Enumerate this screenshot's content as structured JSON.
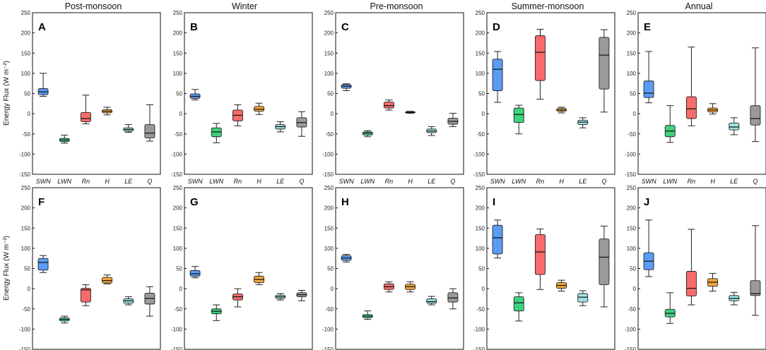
{
  "figure": {
    "type": "box",
    "ylabel": "Energy Flux (W m⁻²)",
    "ylim": [
      -150,
      250
    ],
    "yticks": [
      "250",
      "200",
      "150",
      "100",
      "50",
      "0",
      "-50",
      "-100",
      "-150"
    ],
    "categories": [
      "SWN",
      "LWN",
      "Rn",
      "H",
      "LE",
      "Q"
    ],
    "season_titles": [
      "Post-monsoon",
      "Winter",
      "Pre-monsoon",
      "Summer-monsoon",
      "Annual"
    ],
    "colors": {
      "SWN": "#5b9bf5",
      "LWN": "#3ed27f",
      "Rn": "#f86b6b",
      "H": "#f3a73a",
      "LE": "#9fe0e2",
      "Q": "#9a9a9a"
    }
  },
  "chart_data": [
    {
      "type": "box",
      "letter": "A",
      "season": "Post-monsoon",
      "row": 0,
      "col": 0,
      "boxes": [
        {
          "category": "SWN",
          "min": 43,
          "q1": 47,
          "median": 54,
          "q3": 62,
          "max": 100
        },
        {
          "category": "LWN",
          "min": -73,
          "q1": -69,
          "median": -65,
          "q3": -61,
          "max": -53
        },
        {
          "category": "Rn",
          "min": -25,
          "q1": -20,
          "median": -12,
          "q3": 3,
          "max": 46
        },
        {
          "category": "H",
          "min": -3,
          "q1": 2,
          "median": 6,
          "q3": 10,
          "max": 16
        },
        {
          "category": "LE",
          "min": -46,
          "q1": -43,
          "median": -39,
          "q3": -35,
          "max": -27
        },
        {
          "category": "Q",
          "min": -68,
          "q1": -60,
          "median": -48,
          "q3": -27,
          "max": 22
        }
      ]
    },
    {
      "type": "box",
      "letter": "B",
      "season": "Winter",
      "row": 0,
      "col": 1,
      "boxes": [
        {
          "category": "SWN",
          "min": 34,
          "q1": 38,
          "median": 43,
          "q3": 49,
          "max": 60
        },
        {
          "category": "LWN",
          "min": -72,
          "q1": -57,
          "median": -45,
          "q3": -35,
          "max": -24
        },
        {
          "category": "Rn",
          "min": -30,
          "q1": -18,
          "median": -4,
          "q3": 9,
          "max": 22
        },
        {
          "category": "H",
          "min": -2,
          "q1": 6,
          "median": 11,
          "q3": 18,
          "max": 26
        },
        {
          "category": "LE",
          "min": -45,
          "q1": -38,
          "median": -32,
          "q3": -27,
          "max": -20
        },
        {
          "category": "Q",
          "min": -56,
          "q1": -33,
          "median": -22,
          "q3": -10,
          "max": 5
        }
      ]
    },
    {
      "type": "box",
      "letter": "C",
      "season": "Pre-monsoon",
      "row": 0,
      "col": 2,
      "boxes": [
        {
          "category": "SWN",
          "min": 57,
          "q1": 63,
          "median": 68,
          "q3": 72,
          "max": 74
        },
        {
          "category": "LWN",
          "min": -57,
          "q1": -53,
          "median": -48,
          "q3": -45,
          "max": -42
        },
        {
          "category": "Rn",
          "min": 9,
          "q1": 14,
          "median": 20,
          "q3": 29,
          "max": 34
        },
        {
          "category": "H",
          "min": 1,
          "q1": 2,
          "median": 3,
          "q3": 5,
          "max": 6
        },
        {
          "category": "LE",
          "min": -54,
          "q1": -47,
          "median": -43,
          "q3": -38,
          "max": -32
        },
        {
          "category": "Q",
          "min": -32,
          "q1": -26,
          "median": -19,
          "q3": -11,
          "max": 1
        }
      ]
    },
    {
      "type": "box",
      "letter": "D",
      "season": "Summer-monsoon",
      "row": 0,
      "col": 3,
      "boxes": [
        {
          "category": "SWN",
          "min": 28,
          "q1": 57,
          "median": 110,
          "q3": 135,
          "max": 154
        },
        {
          "category": "LWN",
          "min": -50,
          "q1": -22,
          "median": -2,
          "q3": 14,
          "max": 21
        },
        {
          "category": "Rn",
          "min": 36,
          "q1": 82,
          "median": 152,
          "q3": 193,
          "max": 209
        },
        {
          "category": "H",
          "min": 2,
          "q1": 6,
          "median": 9,
          "q3": 13,
          "max": 16
        },
        {
          "category": "LE",
          "min": -35,
          "q1": -27,
          "median": -21,
          "q3": -16,
          "max": -10
        },
        {
          "category": "Q",
          "min": 4,
          "q1": 61,
          "median": 145,
          "q3": 189,
          "max": 208
        }
      ]
    },
    {
      "type": "box",
      "letter": "E",
      "season": "Annual",
      "row": 0,
      "col": 4,
      "boxes": [
        {
          "category": "SWN",
          "min": 27,
          "q1": 40,
          "median": 51,
          "q3": 81,
          "max": 154
        },
        {
          "category": "LWN",
          "min": -71,
          "q1": -57,
          "median": -43,
          "q3": -29,
          "max": 20
        },
        {
          "category": "Rn",
          "min": -30,
          "q1": -12,
          "median": 12,
          "q3": 42,
          "max": 165
        },
        {
          "category": "H",
          "min": -1,
          "q1": 4,
          "median": 9,
          "q3": 14,
          "max": 25
        },
        {
          "category": "LE",
          "min": -52,
          "q1": -40,
          "median": -33,
          "q3": -23,
          "max": -10
        },
        {
          "category": "Q",
          "min": -69,
          "q1": -28,
          "median": -12,
          "q3": 20,
          "max": 163
        }
      ]
    },
    {
      "type": "box",
      "letter": "F",
      "season": "Post-monsoon",
      "row": 1,
      "col": 0,
      "boxes": [
        {
          "category": "SWN",
          "min": 40,
          "q1": 46,
          "median": 65,
          "q3": 75,
          "max": 82
        },
        {
          "category": "LWN",
          "min": -85,
          "q1": -80,
          "median": -76,
          "q3": -72,
          "max": -68
        },
        {
          "category": "Rn",
          "min": -42,
          "q1": -33,
          "median": -3,
          "q3": 1,
          "max": 10
        },
        {
          "category": "H",
          "min": 12,
          "q1": 14,
          "median": 20,
          "q3": 28,
          "max": 34
        },
        {
          "category": "LE",
          "min": -40,
          "q1": -36,
          "median": -30,
          "q3": -25,
          "max": -20
        },
        {
          "category": "Q",
          "min": -68,
          "q1": -38,
          "median": -24,
          "q3": -11,
          "max": 5
        }
      ]
    },
    {
      "type": "box",
      "letter": "G",
      "season": "Winter",
      "row": 1,
      "col": 1,
      "boxes": [
        {
          "category": "SWN",
          "min": 27,
          "q1": 31,
          "median": 37,
          "q3": 45,
          "max": 55
        },
        {
          "category": "LWN",
          "min": -79,
          "q1": -62,
          "median": -56,
          "q3": -50,
          "max": -40
        },
        {
          "category": "Rn",
          "min": -45,
          "q1": -28,
          "median": -20,
          "q3": -13,
          "max": 0
        },
        {
          "category": "H",
          "min": 10,
          "q1": 15,
          "median": 23,
          "q3": 31,
          "max": 40
        },
        {
          "category": "LE",
          "min": -28,
          "q1": -24,
          "median": -20,
          "q3": -16,
          "max": -12
        },
        {
          "category": "Q",
          "min": -30,
          "q1": -20,
          "median": -15,
          "q3": -10,
          "max": -4
        }
      ]
    },
    {
      "type": "box",
      "letter": "H",
      "season": "Pre-monsoon",
      "row": 1,
      "col": 2,
      "boxes": [
        {
          "category": "SWN",
          "min": 66,
          "q1": 70,
          "median": 76,
          "q3": 82,
          "max": 85
        },
        {
          "category": "LWN",
          "min": -76,
          "q1": -72,
          "median": -68,
          "q3": -64,
          "max": -55
        },
        {
          "category": "Rn",
          "min": -8,
          "q1": -2,
          "median": 5,
          "q3": 12,
          "max": 17
        },
        {
          "category": "H",
          "min": -8,
          "q1": -2,
          "median": 5,
          "q3": 11,
          "max": 17
        },
        {
          "category": "LE",
          "min": -40,
          "q1": -36,
          "median": -32,
          "q3": -25,
          "max": -19
        },
        {
          "category": "Q",
          "min": -50,
          "q1": -33,
          "median": -23,
          "q3": -10,
          "max": 0
        }
      ]
    },
    {
      "type": "box",
      "letter": "I",
      "season": "Summer-monsoon",
      "row": 1,
      "col": 3,
      "boxes": [
        {
          "category": "SWN",
          "min": 76,
          "q1": 86,
          "median": 126,
          "q3": 157,
          "max": 170
        },
        {
          "category": "LWN",
          "min": -80,
          "q1": -55,
          "median": -35,
          "q3": -20,
          "max": -10
        },
        {
          "category": "Rn",
          "min": -2,
          "q1": 35,
          "median": 91,
          "q3": 134,
          "max": 148
        },
        {
          "category": "H",
          "min": -6,
          "q1": 1,
          "median": 8,
          "q3": 15,
          "max": 21
        },
        {
          "category": "LE",
          "min": -42,
          "q1": -33,
          "median": -21,
          "q3": -12,
          "max": -5
        },
        {
          "category": "Q",
          "min": -45,
          "q1": 10,
          "median": 78,
          "q3": 123,
          "max": 155
        }
      ]
    },
    {
      "type": "box",
      "letter": "J",
      "season": "Annual",
      "row": 1,
      "col": 4,
      "boxes": [
        {
          "category": "SWN",
          "min": 30,
          "q1": 47,
          "median": 68,
          "q3": 89,
          "max": 170
        },
        {
          "category": "LWN",
          "min": -86,
          "q1": -70,
          "median": -61,
          "q3": -51,
          "max": -10
        },
        {
          "category": "Rn",
          "min": -40,
          "q1": -18,
          "median": 1,
          "q3": 43,
          "max": 147
        },
        {
          "category": "H",
          "min": -6,
          "q1": 6,
          "median": 16,
          "q3": 25,
          "max": 38
        },
        {
          "category": "LE",
          "min": -40,
          "q1": -30,
          "median": -24,
          "q3": -17,
          "max": -9
        },
        {
          "category": "Q",
          "min": -66,
          "q1": -17,
          "median": -12,
          "q3": 20,
          "max": 156
        }
      ]
    }
  ]
}
